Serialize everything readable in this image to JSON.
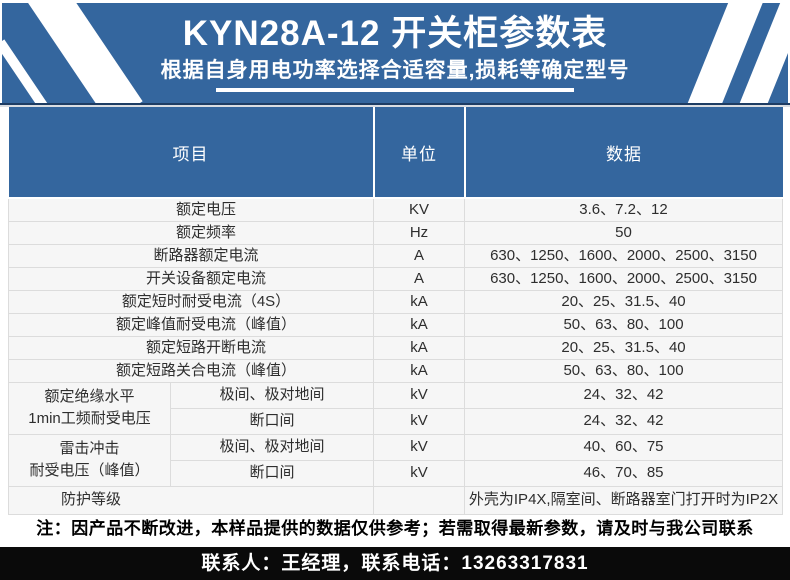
{
  "colors": {
    "primary_blue": "#34669e",
    "seam_navy": "#1d3c63",
    "footer_black": "#0a0a0a"
  },
  "hero": {
    "title": "KYN28A-12 开关柜参数表",
    "subtitle": "根据自身用电功率选择合适容量,损耗等确定型号"
  },
  "table": {
    "headers": {
      "item": "项目",
      "unit": "单位",
      "data": "数据"
    },
    "rows": [
      {
        "item": "额定电压",
        "unit": "KV",
        "data": "3.6、7.2、12"
      },
      {
        "item": "额定频率",
        "unit": "Hz",
        "data": "50"
      },
      {
        "item": "断路器额定电流",
        "unit": "A",
        "data": "630、1250、1600、2000、2500、3150"
      },
      {
        "item": "开关设备额定电流",
        "unit": "A",
        "data": "630、1250、1600、2000、2500、3150"
      },
      {
        "item": "额定短时耐受电流（4S）",
        "unit": "kA",
        "data": "20、25、31.5、40"
      },
      {
        "item": "额定峰值耐受电流（峰值）",
        "unit": "kA",
        "data": "50、63、80、100"
      },
      {
        "item": "额定短路开断电流",
        "unit": "kA",
        "data": "20、25、31.5、40"
      },
      {
        "item": "额定短路关合电流（峰值）",
        "unit": "kA",
        "data": "50、63、80、100"
      }
    ],
    "group_rows": [
      {
        "label_line1": "额定绝缘水平",
        "label_line2": "1min工频耐受电压",
        "subs": [
          {
            "scope": "极间、极对地间",
            "unit": "kV",
            "data": "24、32、42"
          },
          {
            "scope": "断口间",
            "unit": "kV",
            "data": "24、32、42"
          }
        ]
      },
      {
        "label_line1": "雷击冲击",
        "label_line2": "耐受电压（峰值）",
        "subs": [
          {
            "scope": "极间、极对地间",
            "unit": "kV",
            "data": "40、60、75"
          },
          {
            "scope": "断口间",
            "unit": "kV",
            "data": "46、70、85"
          }
        ]
      }
    ],
    "last_row": {
      "item": "防护等级",
      "unit": "",
      "data": "外壳为IP4X,隔室间、断路器室门打开时为IP2X"
    }
  },
  "note": "注：因产品不断改进，本样品提供的数据仅供参考；若需取得最新参数，请及时与我公司联系",
  "footer": "联系人：王经理，联系电话：13263317831"
}
